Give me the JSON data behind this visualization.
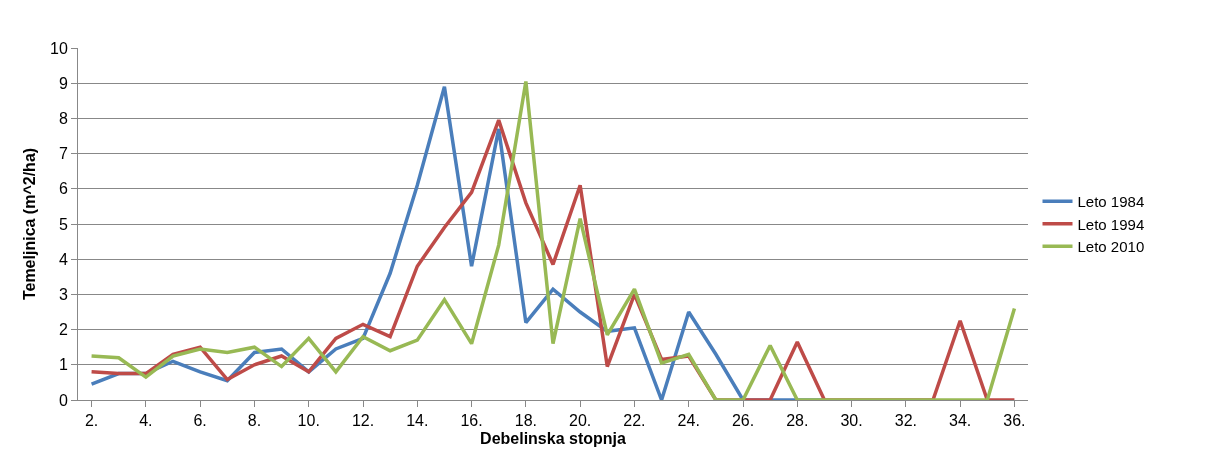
{
  "chart_data": {
    "type": "line",
    "xlabel": "Debelinska stopnja",
    "ylabel": "Temeljnica (m^2/ha)",
    "categories": [
      "2.",
      null,
      "4.",
      null,
      "6.",
      null,
      "8.",
      null,
      "10.",
      null,
      "12.",
      null,
      "14.",
      null,
      "16.",
      null,
      "18.",
      null,
      "20.",
      null,
      "22.",
      null,
      "24.",
      null,
      "26.",
      null,
      "28.",
      null,
      "30.",
      null,
      "32.",
      null,
      "34.",
      null,
      "36."
    ],
    "series": [
      {
        "name": "Leto 1984",
        "color": "#4a7ebb",
        "values": [
          0.45,
          0.75,
          0.75,
          1.1,
          0.8,
          0.55,
          1.35,
          1.45,
          0.8,
          1.45,
          1.75,
          3.6,
          6.1,
          8.9,
          3.8,
          7.7,
          2.2,
          3.15,
          2.5,
          1.95,
          2.05,
          0,
          2.5,
          1.3,
          0,
          0,
          0,
          0,
          null,
          null,
          null,
          null,
          null,
          null,
          null
        ]
      },
      {
        "name": "Leto 1994",
        "color": "#be4b48",
        "values": [
          0.8,
          0.75,
          0.75,
          1.3,
          1.5,
          0.58,
          1.0,
          1.25,
          0.8,
          1.75,
          2.15,
          1.8,
          3.8,
          4.9,
          5.9,
          7.95,
          5.6,
          3.85,
          6.1,
          0.95,
          3.0,
          1.15,
          1.25,
          0,
          0,
          0,
          1.65,
          0,
          0,
          0,
          0,
          0,
          2.25,
          0,
          0
        ]
      },
      {
        "name": "Leto 2010",
        "color": "#98b954",
        "values": [
          1.25,
          1.2,
          0.65,
          1.25,
          1.45,
          1.35,
          1.5,
          0.95,
          1.75,
          0.8,
          1.8,
          1.4,
          1.7,
          2.85,
          1.6,
          4.4,
          9.05,
          1.6,
          5.15,
          1.85,
          3.15,
          1.05,
          1.3,
          0,
          0,
          1.55,
          0,
          0,
          0,
          0,
          0,
          0,
          0,
          0,
          2.6
        ]
      }
    ],
    "ylim": [
      0,
      10
    ],
    "yticks": [
      0,
      1,
      2,
      3,
      4,
      5,
      6,
      7,
      8,
      9,
      10
    ],
    "grid": "y",
    "legend": "right",
    "marker": "none",
    "line_style": "solid"
  }
}
